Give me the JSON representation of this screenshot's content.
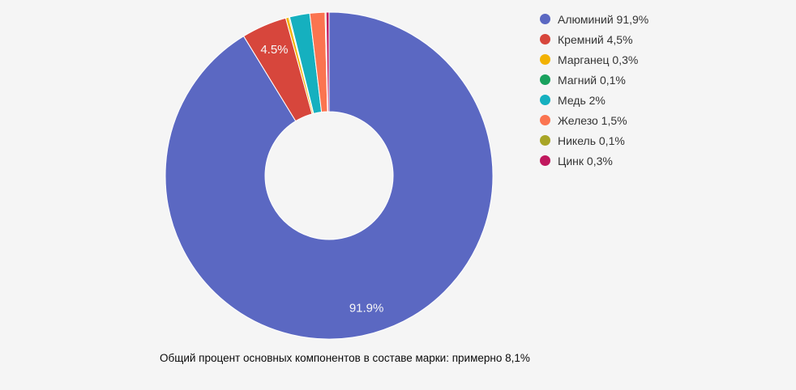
{
  "background_color": "#f5f5f5",
  "chart_data": {
    "type": "pie",
    "donut": true,
    "hole_ratio": 0.39,
    "legend_position": "right",
    "caption": "Общий процент основных компонентов в составе марки: примерно 8,1%",
    "slices": [
      {
        "name": "Алюминий",
        "value": 91.9,
        "legend_label": "Алюминий 91,9%",
        "slice_label": "91.9%",
        "color": "#5b68c2"
      },
      {
        "name": "Кремний",
        "value": 4.5,
        "legend_label": "Кремний 4,5%",
        "slice_label": "4.5%",
        "color": "#d7463c"
      },
      {
        "name": "Марганец",
        "value": 0.3,
        "legend_label": "Марганец 0,3%",
        "slice_label": "",
        "color": "#f2b202"
      },
      {
        "name": "Магний",
        "value": 0.1,
        "legend_label": "Магний 0,1%",
        "slice_label": "",
        "color": "#18a15d"
      },
      {
        "name": "Медь",
        "value": 2,
        "legend_label": "Медь 2%",
        "slice_label": "",
        "color": "#15b0bf"
      },
      {
        "name": "Железо",
        "value": 1.5,
        "legend_label": "Железо 1,5%",
        "slice_label": "",
        "color": "#fb7450"
      },
      {
        "name": "Никель",
        "value": 0.1,
        "legend_label": "Никель 0,1%",
        "slice_label": "",
        "color": "#a8a526"
      },
      {
        "name": "Цинк",
        "value": 0.3,
        "legend_label": "Цинк 0,3%",
        "slice_label": "",
        "color": "#c0185d"
      }
    ]
  }
}
